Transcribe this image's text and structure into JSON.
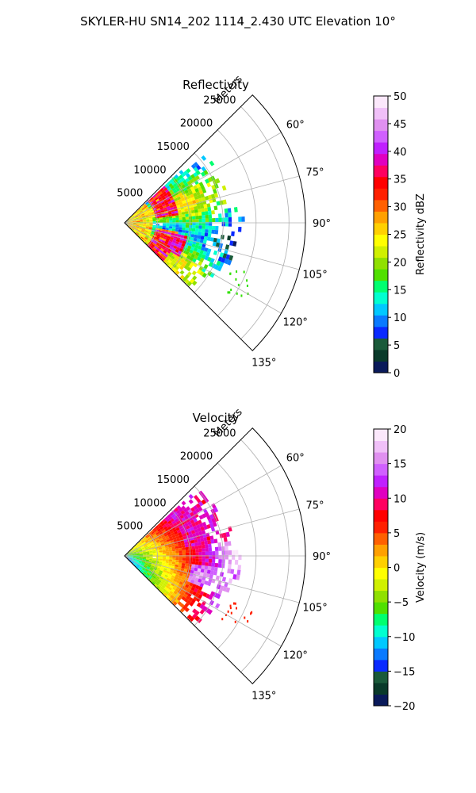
{
  "title": "SKYLER-HU  SN14_202  1114_2.430 UTC Elevation 10°",
  "colors": {
    "grid": "#b0b0b0",
    "axis": "#000000",
    "background": "#ffffff"
  },
  "chart_data": [
    {
      "type": "heatmap",
      "projection": "polar-sector",
      "title": "Reflectivity",
      "radial_axis_label": "Meters",
      "radial_ticks": [
        5000,
        10000,
        15000,
        20000,
        25000
      ],
      "radial_tick_labels": [
        "5000",
        "10000",
        "15000",
        "20000",
        "25000"
      ],
      "rlim": [
        0,
        27500
      ],
      "azimuth_range_deg": [
        45,
        135
      ],
      "azimuth_ticks_deg": [
        60,
        75,
        90,
        105,
        120,
        135
      ],
      "azimuth_tick_labels": [
        "60°",
        "75°",
        "90°",
        "105°",
        "120°",
        "135°"
      ],
      "grid": true,
      "data_extent_m": [
        0,
        17500
      ],
      "colorbar": {
        "label": "Reflectivity dBZ",
        "vmin": 0,
        "vmax": 50,
        "ticks": [
          0,
          5,
          10,
          15,
          20,
          25,
          30,
          35,
          40,
          45,
          50
        ],
        "tick_labels": [
          "0",
          "5",
          "10",
          "15",
          "20",
          "25",
          "30",
          "35",
          "40",
          "45",
          "50"
        ],
        "colors": [
          "#0a1a5a",
          "#0a3a2a",
          "#1a5a3a",
          "#0a2aff",
          "#0a7aff",
          "#00c8ff",
          "#00ffd0",
          "#00ff70",
          "#50e000",
          "#90e000",
          "#d0f000",
          "#ffff00",
          "#ffd000",
          "#ffa000",
          "#ff6000",
          "#ff2000",
          "#ff0000",
          "#ff0060",
          "#e000c0",
          "#c020ff",
          "#d060ff",
          "#e090f0",
          "#f0c0f8",
          "#fbe8fb"
        ]
      }
    },
    {
      "type": "heatmap",
      "projection": "polar-sector",
      "title": "Velocity",
      "radial_axis_label": "Meters",
      "radial_ticks": [
        5000,
        10000,
        15000,
        20000,
        25000
      ],
      "radial_tick_labels": [
        "5000",
        "10000",
        "15000",
        "20000",
        "25000"
      ],
      "rlim": [
        0,
        27500
      ],
      "azimuth_range_deg": [
        45,
        135
      ],
      "azimuth_ticks_deg": [
        60,
        75,
        90,
        105,
        120,
        135
      ],
      "azimuth_tick_labels": [
        "60°",
        "75°",
        "90°",
        "105°",
        "120°",
        "135°"
      ],
      "grid": true,
      "data_extent_m": [
        0,
        17500
      ],
      "colorbar": {
        "label": "Velocity (m/s)",
        "vmin": -20,
        "vmax": 20,
        "ticks": [
          -20,
          -15,
          -10,
          -5,
          0,
          5,
          10,
          15,
          20
        ],
        "tick_labels": [
          "−20",
          "−15",
          "−10",
          "−5",
          "0",
          "5",
          "10",
          "15",
          "20"
        ],
        "colors": [
          "#0a1a5a",
          "#0a3a2a",
          "#1a5a3a",
          "#0a2aff",
          "#0a7aff",
          "#00c8ff",
          "#00ffd0",
          "#00ff70",
          "#50e000",
          "#90e000",
          "#d0f000",
          "#ffff00",
          "#ffd000",
          "#ffa000",
          "#ff6000",
          "#ff2000",
          "#ff0000",
          "#ff0060",
          "#e000c0",
          "#c020ff",
          "#d060ff",
          "#e090f0",
          "#f0c0f8",
          "#fbe8fb"
        ]
      }
    }
  ]
}
